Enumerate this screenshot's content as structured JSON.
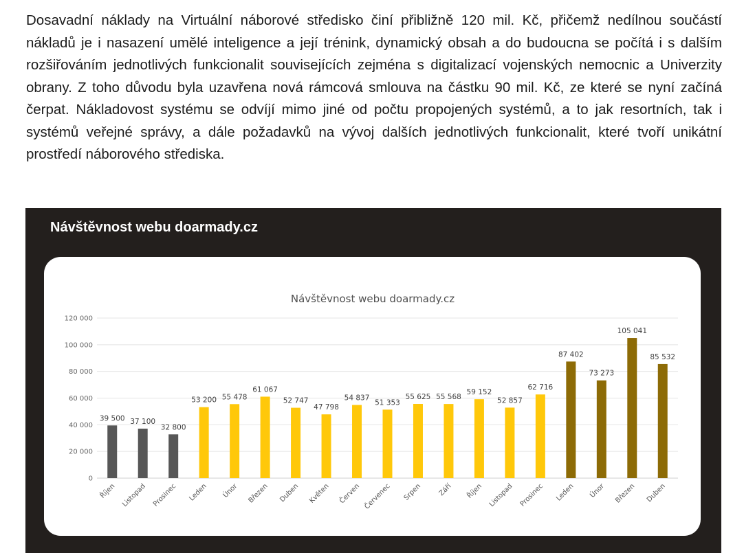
{
  "document": {
    "paragraph": "Dosavadní náklady na Virtuální náborové středisko činí přibližně 120 mil. Kč, přičemž nedílnou součástí nákladů je i nasazení umělé inteligence a její trénink, dynamický obsah a do budoucna se počítá i s dalším rozšiřováním jednotlivých funkcionalit souvisejících zejména s digitalizací vojenských nemocnic a Univerzity obrany. Z toho důvodu byla uzavřena nová rámcová smlouva na částku 90 mil. Kč, ze které se nyní začíná čerpat. Nákladovost systému se odvíjí mimo jiné od počtu propojených systémů, a to jak resortních, tak i systémů veřejné správy, a dále požadavků na vývoj dalších jednotlivých funkcionalit, které tvoří unikátní prostředí náborového střediska."
  },
  "panel": {
    "title": "Návštěvnost webu doarmady.cz",
    "background_color": "#231f1d"
  },
  "chart_data": {
    "type": "bar",
    "title": "Návštěvnost webu doarmady.cz",
    "xlabel": "",
    "ylabel": "",
    "ylim": [
      0,
      120000
    ],
    "yticks": [
      0,
      20000,
      40000,
      60000,
      80000,
      100000,
      120000
    ],
    "ytick_labels": [
      "0",
      "20 000",
      "40 000",
      "60 000",
      "80 000",
      "100 000",
      "120 000"
    ],
    "grid": true,
    "legend": "none",
    "categories": [
      "Říjen",
      "Listopad",
      "Prosinec",
      "Leden",
      "Únor",
      "Březen",
      "Duben",
      "Květen",
      "Červen",
      "Červenec",
      "Srpen",
      "Září",
      "Říjen",
      "Listopad",
      "Prosinec",
      "Leden",
      "Únor",
      "Březen",
      "Duben"
    ],
    "values": [
      39500,
      37100,
      32800,
      53200,
      55478,
      61067,
      52747,
      47798,
      54837,
      51353,
      55625,
      55568,
      59152,
      52857,
      62716,
      87402,
      73273,
      105041,
      85532
    ],
    "value_labels": [
      "39 500",
      "37 100",
      "32 800",
      "53 200",
      "55 478",
      "61 067",
      "52 747",
      "47 798",
      "54 837",
      "51 353",
      "55 625",
      "55 568",
      "59 152",
      "52 857",
      "62 716",
      "87 402",
      "73 273",
      "105 041",
      "85 532"
    ],
    "bar_colors": [
      "#575757",
      "#575757",
      "#575757",
      "#ffc80a",
      "#ffc80a",
      "#ffc80a",
      "#ffc80a",
      "#ffc80a",
      "#ffc80a",
      "#ffc80a",
      "#ffc80a",
      "#ffc80a",
      "#ffc80a",
      "#ffc80a",
      "#ffc80a",
      "#8d6b06",
      "#8d6b06",
      "#8d6b06",
      "#8d6b06"
    ]
  }
}
